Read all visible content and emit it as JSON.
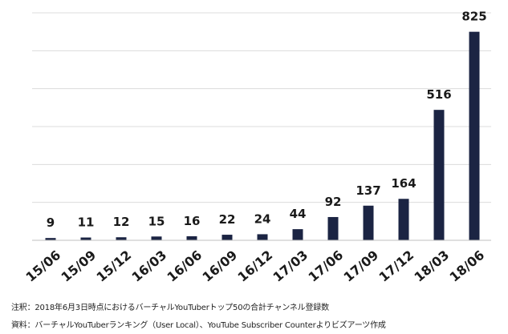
{
  "chart_data": {
    "type": "bar",
    "categories": [
      "15/06",
      "15/09",
      "15/12",
      "16/03",
      "16/06",
      "16/09",
      "16/12",
      "17/03",
      "17/06",
      "17/09",
      "17/12",
      "18/03",
      "18/06"
    ],
    "values": [
      9,
      11,
      12,
      15,
      16,
      22,
      24,
      44,
      92,
      137,
      164,
      516,
      825
    ],
    "data_labels": [
      "9",
      "11",
      "12",
      "15",
      "16",
      "22",
      "24",
      "44",
      "92",
      "137",
      "164",
      "516",
      "825"
    ],
    "title": "",
    "xlabel": "",
    "ylabel": "",
    "ylim": [
      0,
      900
    ],
    "grid": true,
    "legend": "none",
    "bar_color": "#1b2443",
    "grid_color": "#dcdcdc"
  },
  "notes": {
    "note_1": "注釈：2018年6月3日時点におけるバーチャルYouTuberトップ50の合計チャンネル登録数",
    "note_2": "資料：バーチャルYouTuberランキング（User Local）、YouTube Subscriber Counterよりビズアーツ作成"
  }
}
